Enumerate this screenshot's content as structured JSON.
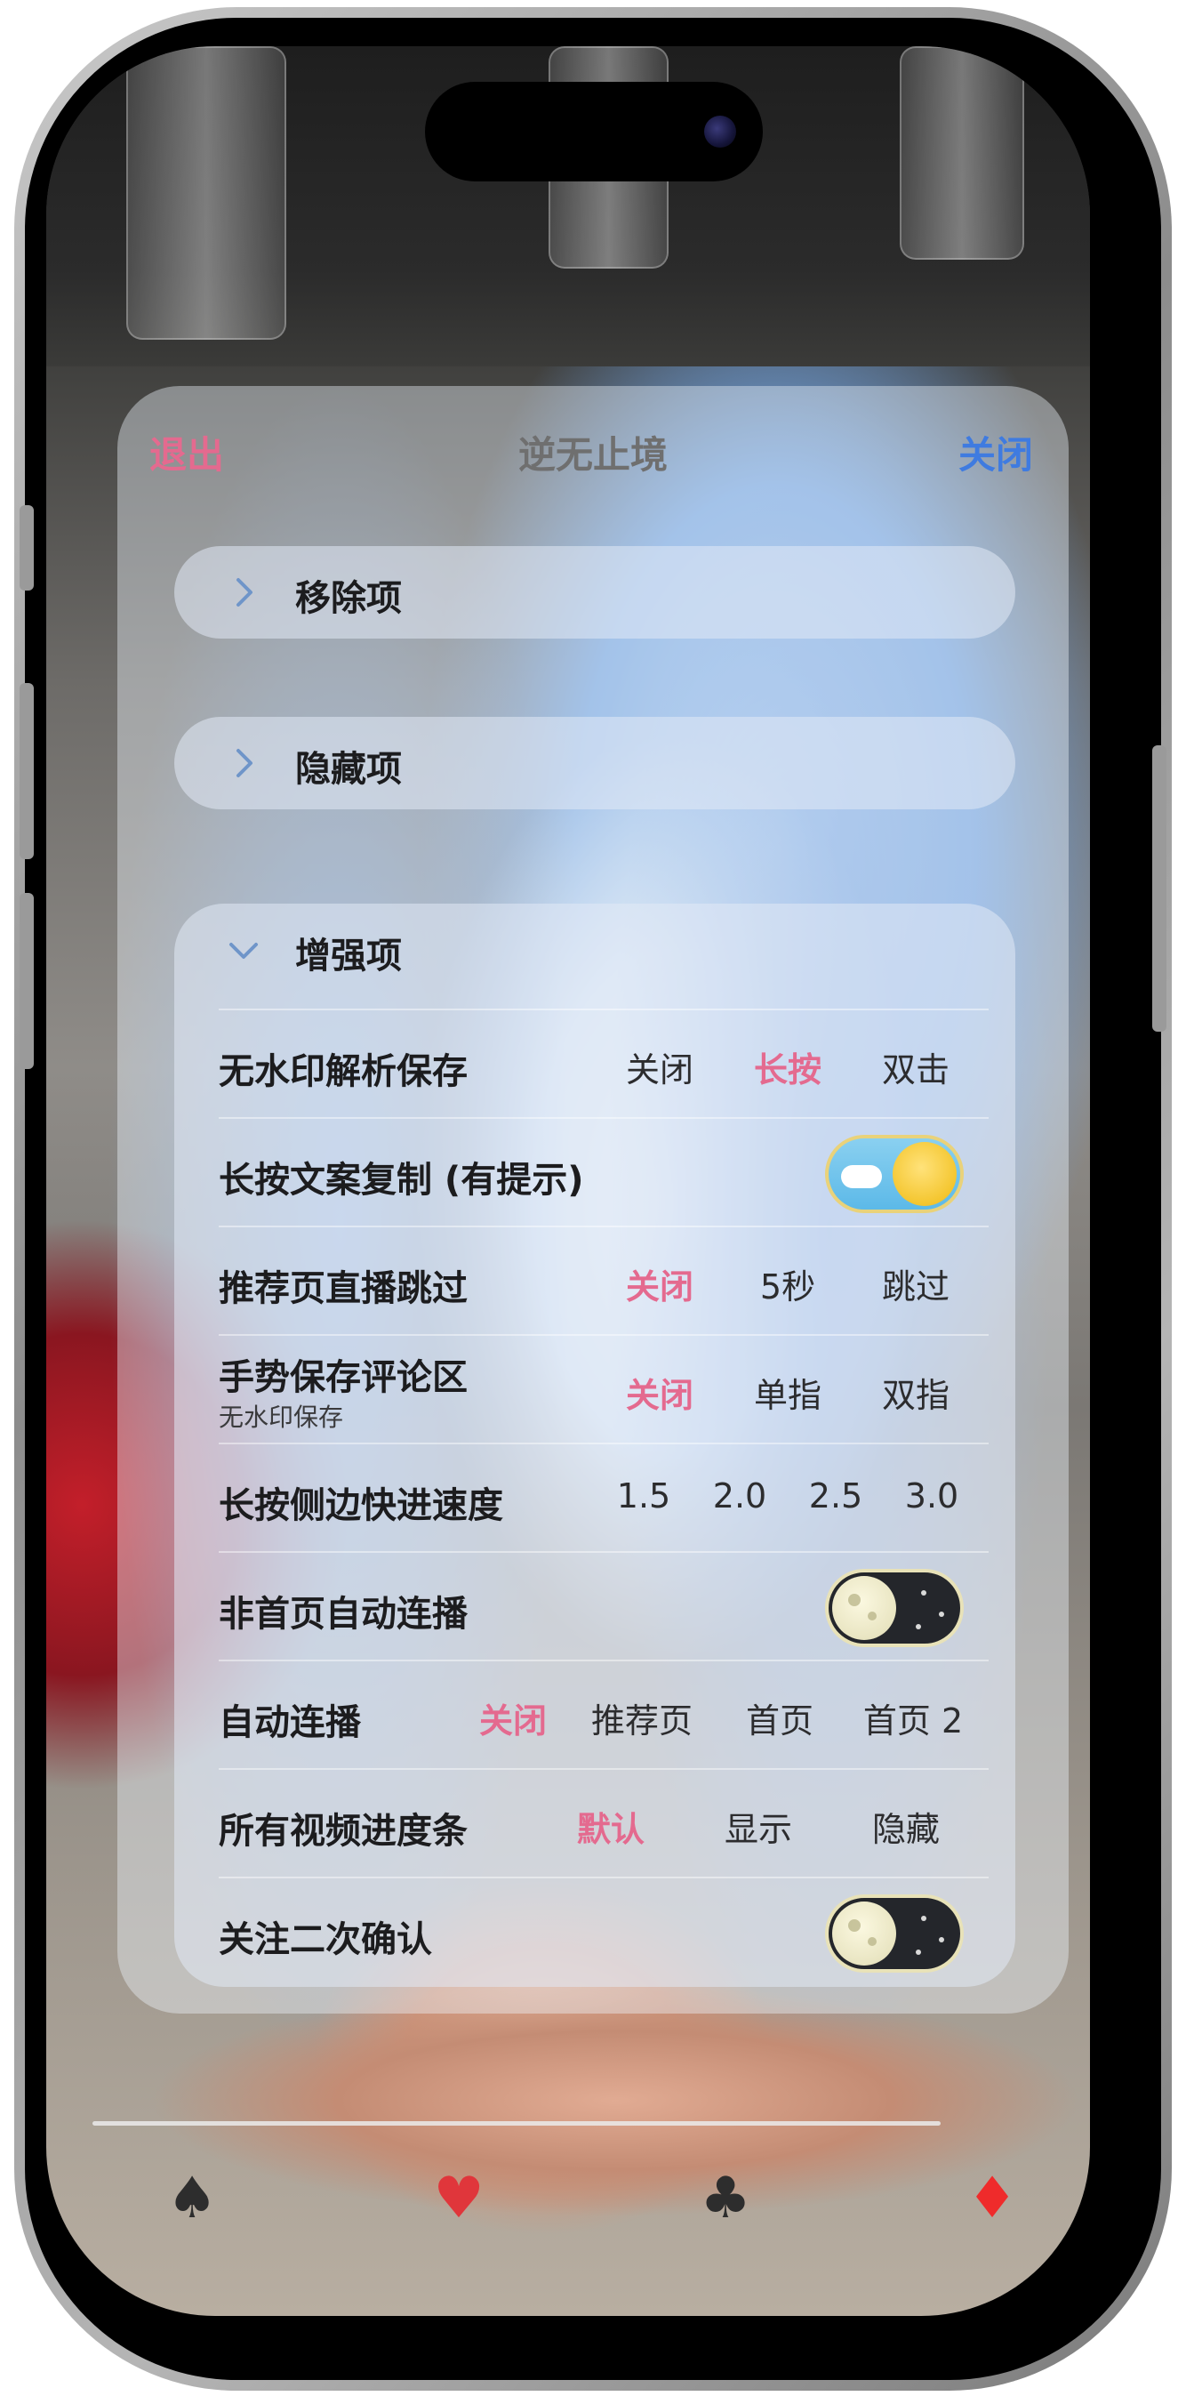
{
  "header": {
    "left_label": "退出",
    "title": "逆无止境",
    "right_label": "关闭"
  },
  "sections": {
    "remove": {
      "label": "移除项",
      "expanded": false
    },
    "hide": {
      "label": "隐藏项",
      "expanded": false
    },
    "enhance": {
      "label": "增强项",
      "expanded": true
    }
  },
  "rows": [
    {
      "label": "无水印解析保存",
      "options": [
        "关闭",
        "长按",
        "双击"
      ],
      "selected": "长按"
    },
    {
      "label": "长按文案复制 (有提示)",
      "toggle": "on"
    },
    {
      "label": "推荐页直播跳过",
      "options": [
        "关闭",
        "5秒",
        "跳过"
      ],
      "selected": "关闭"
    },
    {
      "label": "手势保存评论区",
      "sublabel": "无水印保存",
      "options": [
        "关闭",
        "单指",
        "双指"
      ],
      "selected": "关闭"
    },
    {
      "label": "长按侧边快进速度",
      "options": [
        "1.5",
        "2.0",
        "2.5",
        "3.0"
      ],
      "selected": ""
    },
    {
      "label": "非首页自动连播",
      "toggle": "off"
    },
    {
      "label": "自动连播",
      "options": [
        "关闭",
        "推荐页",
        "首页",
        "首页 2"
      ],
      "selected": "关闭"
    },
    {
      "label": "所有视频进度条",
      "options": [
        "默认",
        "显示",
        "隐藏"
      ],
      "selected": "默认"
    },
    {
      "label": "关注二次确认",
      "toggle": "off"
    }
  ],
  "colors": {
    "accent_pink": "#e46a8f",
    "accent_blue": "#3f7be0"
  },
  "bottom_bar": {
    "items": [
      "♠",
      "♥",
      "♣",
      "♦"
    ]
  }
}
